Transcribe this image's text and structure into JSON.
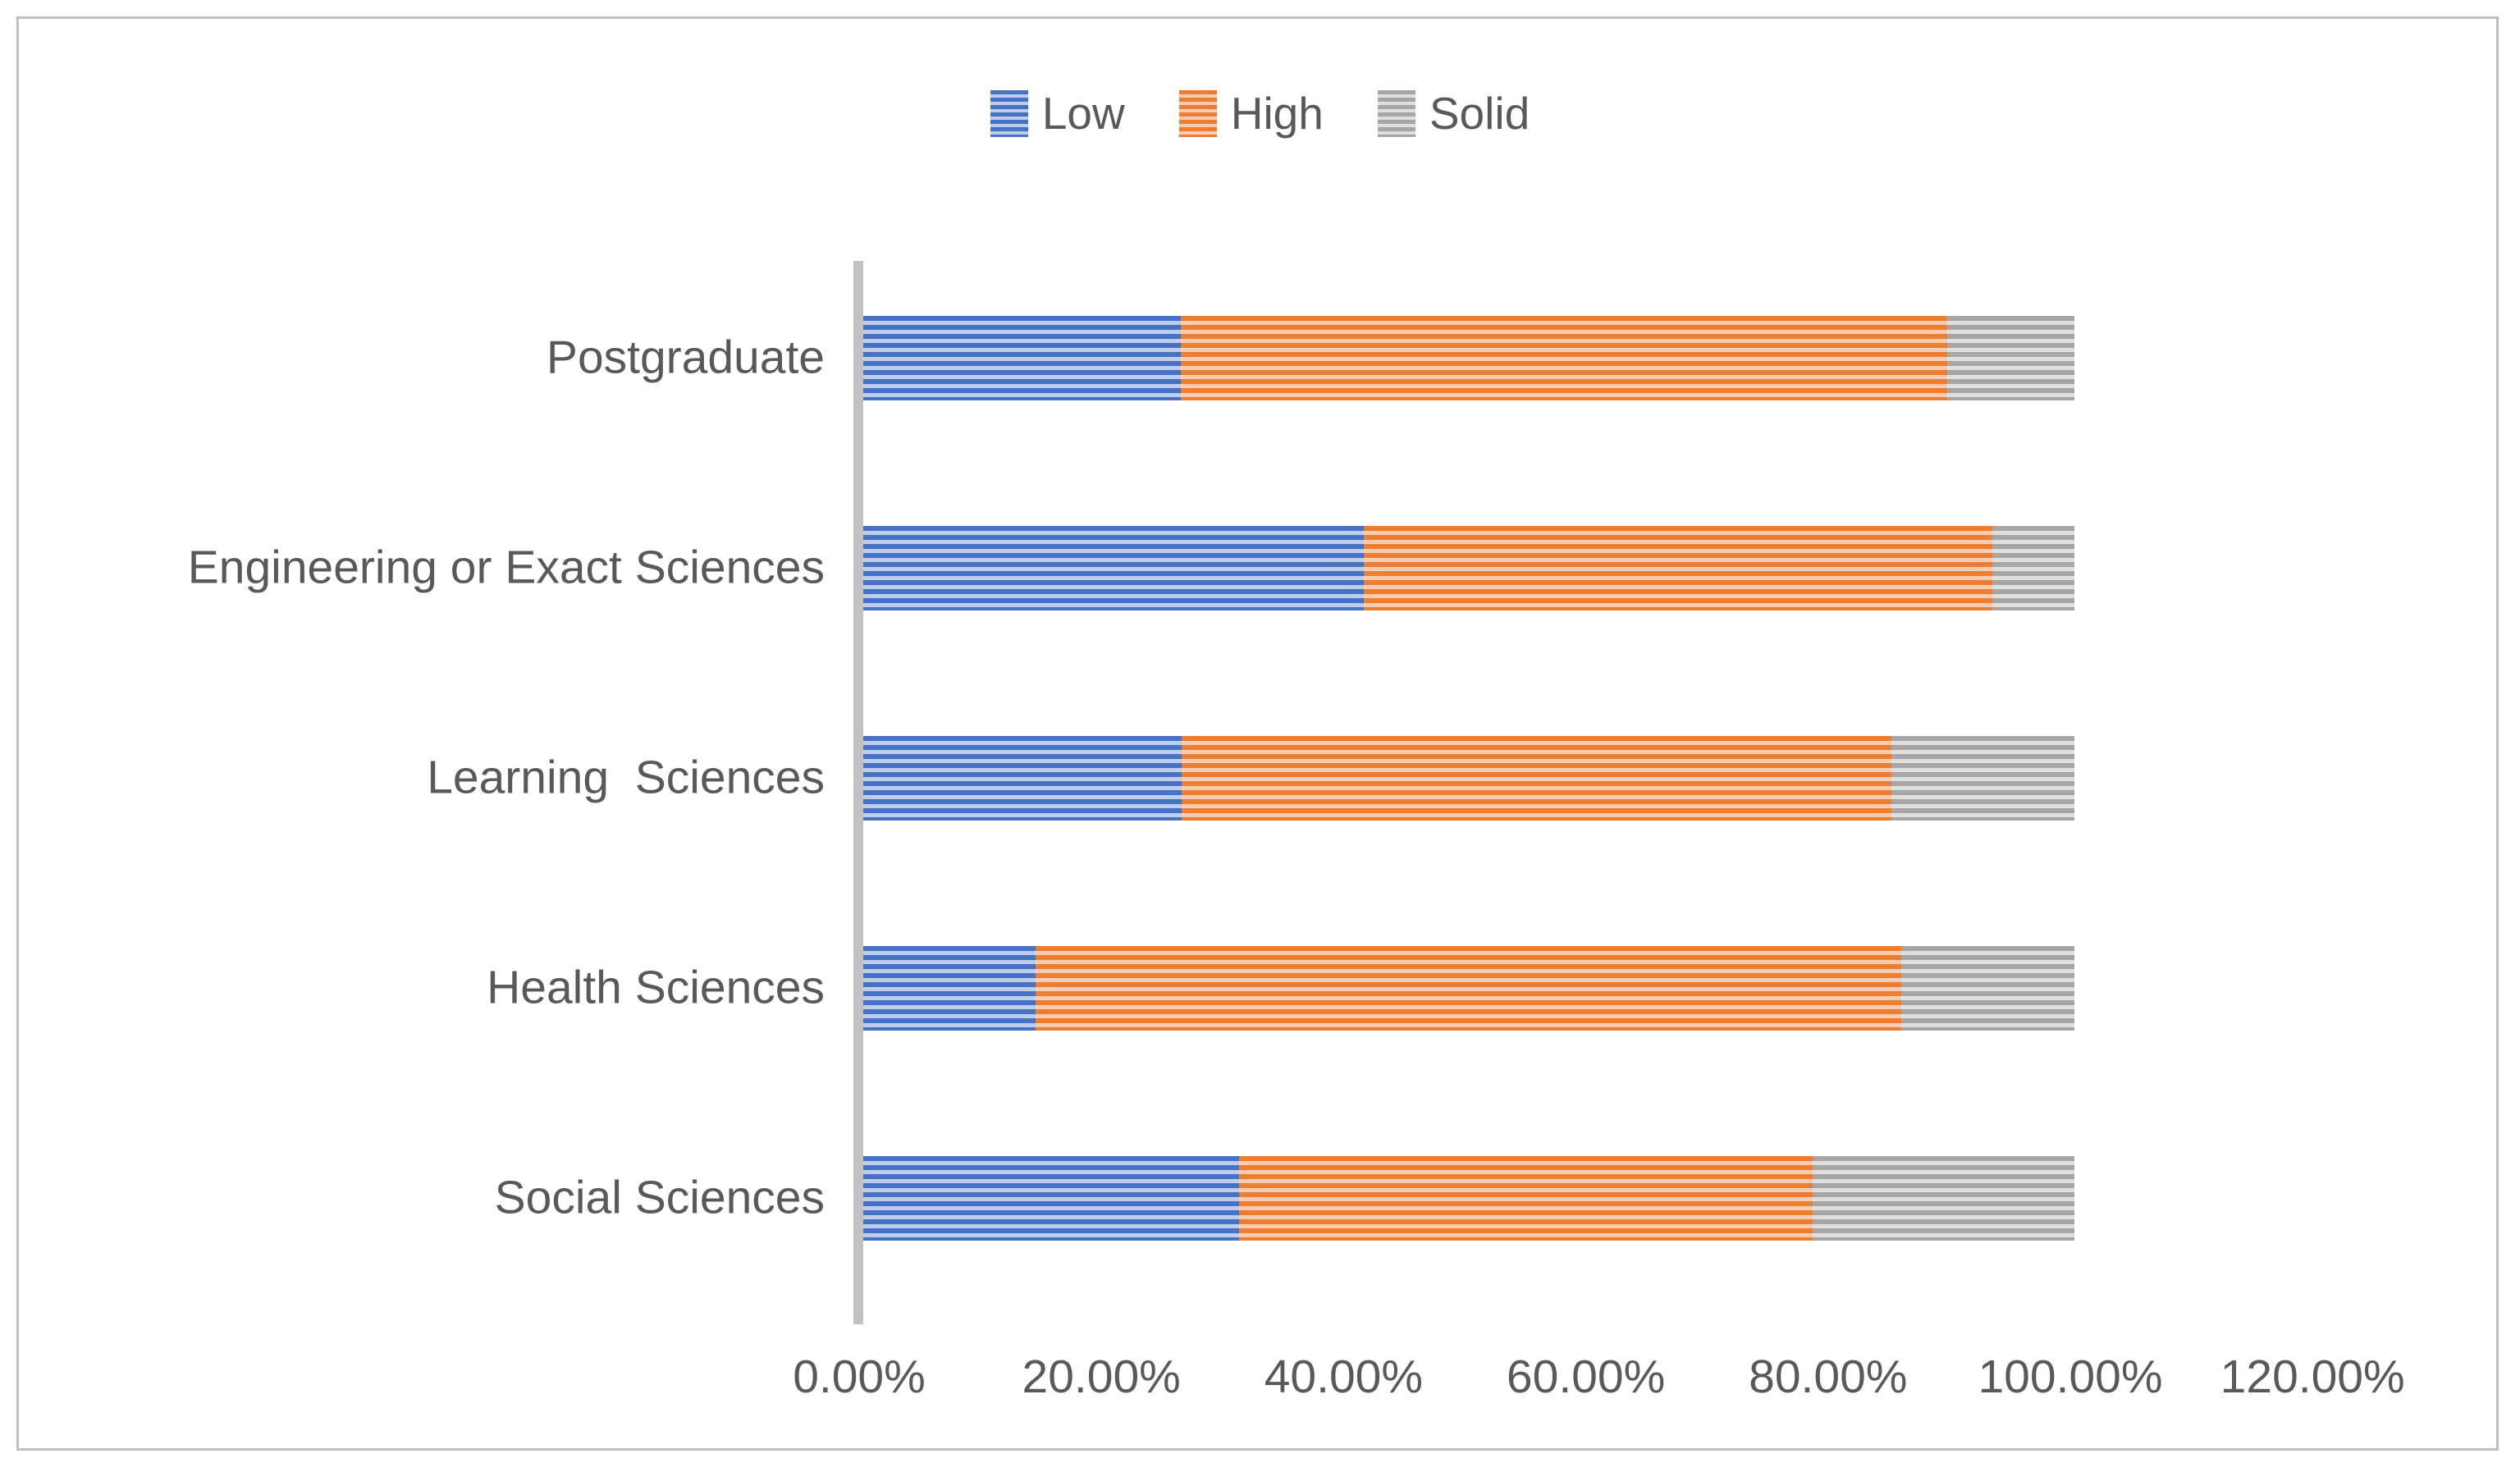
{
  "chart_data": {
    "type": "bar",
    "orientation": "horizontal",
    "stacked": true,
    "units": "percent",
    "title": "",
    "xlabel": "",
    "ylabel": "",
    "grid": false,
    "categories": [
      "Postgraduate",
      "Engineering or Exact Sciences",
      "Learning  Sciences",
      "Health Sciences",
      "Social Sciences"
    ],
    "series": [
      {
        "name": "Low",
        "color": "#4472C4",
        "color_light": "#BFCDEB",
        "values": [
          26.2,
          41.3,
          26.3,
          14.2,
          31.0
        ]
      },
      {
        "name": "High",
        "color": "#ED7D31",
        "color_light": "#F8CCB0",
        "values": [
          63.3,
          51.9,
          58.6,
          71.5,
          47.4
        ]
      },
      {
        "name": "Solid",
        "color": "#A6A6A6",
        "color_light": "#DFDFDF",
        "values": [
          10.5,
          6.8,
          15.1,
          14.3,
          21.6
        ]
      }
    ],
    "x_axis": {
      "min": 0,
      "max": 120,
      "tick_step": 20,
      "tick_labels": [
        "0.00%",
        "20.00%",
        "40.00%",
        "60.00%",
        "80.00%",
        "100.00%",
        "120.00%"
      ]
    },
    "legend": {
      "position": "top",
      "entries": [
        "Low",
        "High",
        "Solid"
      ]
    }
  },
  "styles": {
    "text_color": "#595959",
    "axis_line_color": "#C2C2C2",
    "border_color": "#BFBFBF",
    "background": "#FFFFFF",
    "pattern": "horizontal-stripes"
  }
}
